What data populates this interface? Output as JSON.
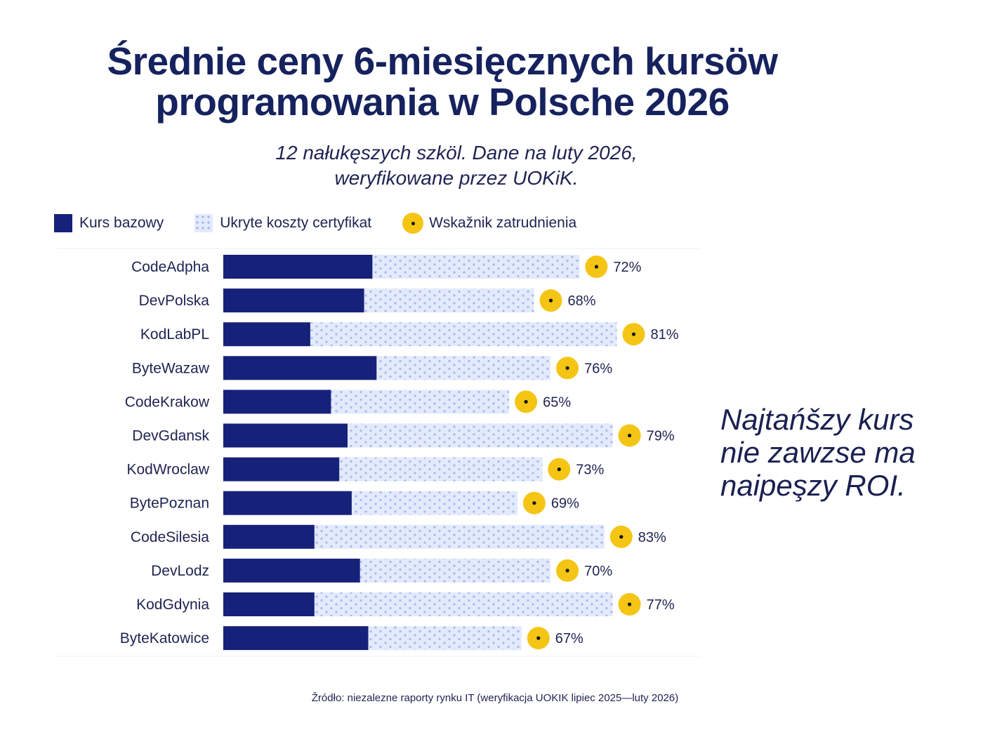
{
  "title_line1": "Średnie ceny 6-miesięcznych kursöw",
  "title_line2": "programowania w Polsche 2026",
  "subtitle_line1": "12 nałukęszych szköl. Dane na luty 2026,",
  "subtitle_line2": "weryfikowane przez UOKiK.",
  "legend": {
    "base": "Kurs bazowy",
    "hidden": "Ukryte koszty certyfikat",
    "employment": "Wskažnik zatrudnienia"
  },
  "callout": [
    "Najtańšzy kurs",
    "nie zawzse ma",
    "naipeşzy ROI."
  ],
  "source": "Žródło:  niezalezne raporty rynku IT (weryfikacja UOKIK lipiec 2025—luty 2026)",
  "colors": {
    "base": "#16227a",
    "hidden": "#e3eafc",
    "hidden_dots": "#9fb2ec",
    "employment_marker": "#f5c515"
  },
  "chart_data": {
    "type": "bar",
    "orientation": "horizontal",
    "stacked": true,
    "categories": [
      "CodeAdpha",
      "DevPolska",
      "KodLabPL",
      "ByteWazaw",
      "CodeKrakow",
      "DevGdansk",
      "KodWroclaw",
      "BytePoznan",
      "CodeSilesia",
      "DevLodz",
      "KodGdynia",
      "ByteKatowice"
    ],
    "series": [
      {
        "name": "Kurs bazowy",
        "values": [
          36,
          34,
          21,
          37,
          26,
          30,
          28,
          31,
          22,
          33,
          22,
          35
        ]
      },
      {
        "name": "Ukryte koszty certyfikat",
        "values": [
          50,
          41,
          74,
          42,
          43,
          64,
          49,
          40,
          70,
          46,
          72,
          37
        ]
      }
    ],
    "markers": {
      "name": "Wskažnik zatrudnienia",
      "labels": [
        "72%",
        "68%",
        "81%",
        "76%",
        "65%",
        "79%",
        "73%",
        "69%",
        "83%",
        "70%",
        "77%",
        "67%"
      ]
    },
    "axis": {
      "x_range": [
        0,
        100
      ],
      "ticks_shown": false,
      "grid": false
    },
    "legend_position": "top-left"
  }
}
